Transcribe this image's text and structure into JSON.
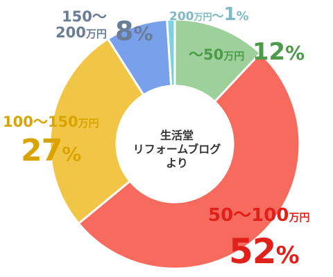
{
  "center_lines": [
    "生活堂",
    "リフォームブログ",
    "より"
  ],
  "chart_data": {
    "type": "pie",
    "donut": true,
    "start_angle_deg": 0,
    "direction": "clockwise",
    "slices": [
      {
        "range": "〜50",
        "unit": "万円",
        "value": 12,
        "percent_text": "12",
        "color": "#9dd09a",
        "label_color": "#4d9a4b"
      },
      {
        "range": "50〜100",
        "unit": "万円",
        "value": 52,
        "percent_text": "52",
        "color": "#f76b5e",
        "label_color": "#e0201a"
      },
      {
        "range": "100〜150",
        "unit": "万円",
        "value": 27,
        "percent_text": "27",
        "color": "#f1c646",
        "label_color": "#d9a400"
      },
      {
        "range_line1": "150〜",
        "range_line2": "200",
        "unit": "万円",
        "value": 8,
        "percent_text": "8",
        "color": "#79a0ea",
        "label_color": "#6b7c96"
      },
      {
        "range": "200",
        "unit": "万円",
        "range_suffix": "〜",
        "value": 1,
        "percent_text": "1",
        "color": "#7fd0e0",
        "label_color": "#7dbac4"
      }
    ]
  },
  "percent_sign": "%"
}
